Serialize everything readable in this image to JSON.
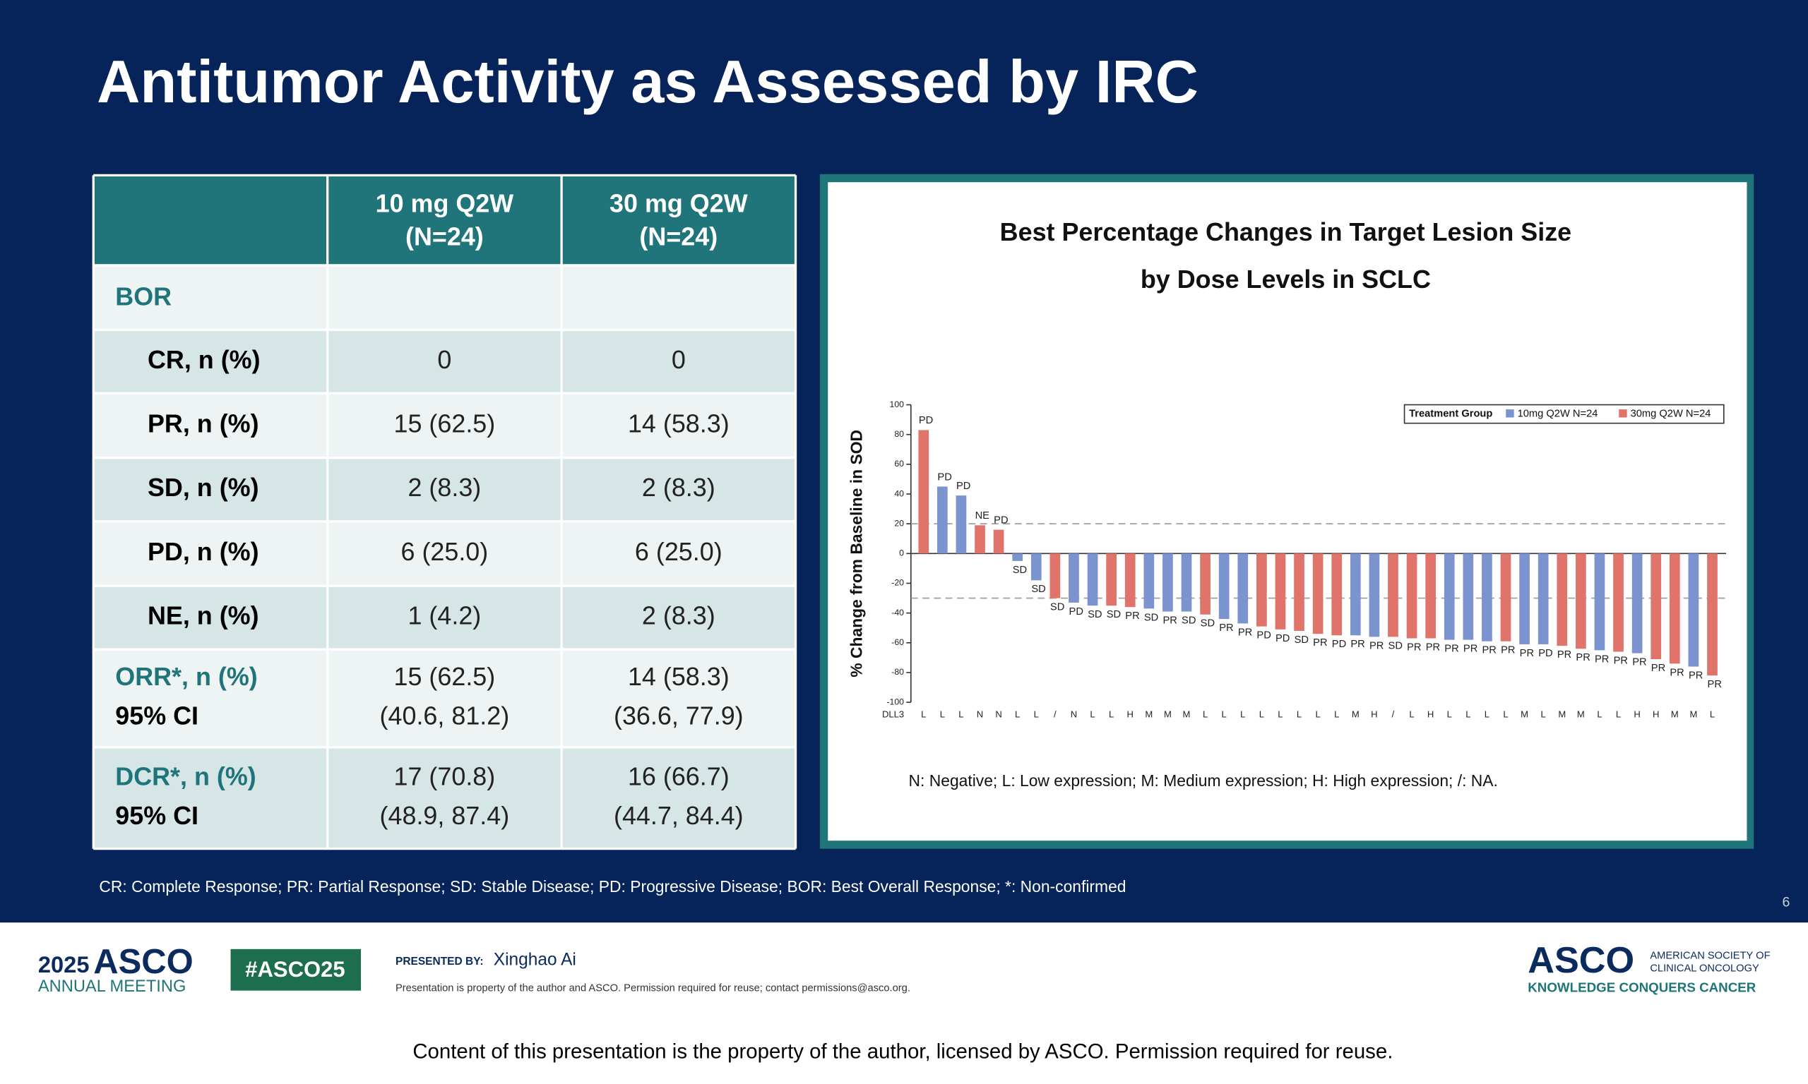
{
  "slide": {
    "title": "Antitumor Activity as Assessed by IRC",
    "footnote": "CR: Complete Response; PR: Partial Response; SD: Stable Disease; PD: Progressive Disease; BOR: Best Overall Response; *: Non-confirmed",
    "page_number": "6"
  },
  "table": {
    "columns": [
      [
        "10 mg Q2W",
        "(N=24)"
      ],
      [
        "30 mg Q2W",
        "(N=24)"
      ]
    ],
    "section": "BOR",
    "rows": [
      {
        "label": [
          "CR, n (%)"
        ],
        "cells": [
          [
            "0"
          ],
          [
            "0"
          ]
        ]
      },
      {
        "label": [
          "PR, n (%)"
        ],
        "cells": [
          [
            "15 (62.5)"
          ],
          [
            "14 (58.3)"
          ]
        ]
      },
      {
        "label": [
          "SD, n (%)"
        ],
        "cells": [
          [
            "2 (8.3)"
          ],
          [
            "2 (8.3)"
          ]
        ]
      },
      {
        "label": [
          "PD, n (%)"
        ],
        "cells": [
          [
            "6 (25.0)"
          ],
          [
            "6 (25.0)"
          ]
        ]
      },
      {
        "label": [
          "NE, n (%)"
        ],
        "cells": [
          [
            "1 (4.2)"
          ],
          [
            "2 (8.3)"
          ]
        ]
      },
      {
        "label": [
          "ORR*, n (%)",
          "95% CI"
        ],
        "cells": [
          [
            "15 (62.5)",
            "(40.6, 81.2)"
          ],
          [
            "14 (58.3)",
            "(36.6, 77.9)"
          ]
        ]
      },
      {
        "label": [
          "DCR*, n (%)",
          "95% CI"
        ],
        "cells": [
          [
            "17 (70.8)",
            "(48.9, 87.4)"
          ],
          [
            "16 (66.7)",
            "(44.7, 84.4)"
          ]
        ]
      }
    ]
  },
  "chart_data": {
    "type": "bar",
    "title": [
      "Best Percentage Changes in Target Lesion Size",
      "by Dose Levels in SCLC"
    ],
    "y_label": "% Change from Baseline in SOD",
    "category_axis_label": "DLL3",
    "categories": [
      "L",
      "L",
      "L",
      "N",
      "N",
      "L",
      "L",
      "/",
      "N",
      "L",
      "L",
      "H",
      "M",
      "M",
      "M",
      "L",
      "L",
      "L",
      "L",
      "L",
      "L",
      "L",
      "L",
      "M",
      "H",
      "/",
      "L",
      "H",
      "L",
      "L",
      "L",
      "L",
      "M",
      "L",
      "M",
      "M",
      "L",
      "L",
      "H",
      "H",
      "M",
      "M",
      "L"
    ],
    "bar_labels": [
      "PD",
      "PD",
      "PD",
      "NE",
      "PD",
      "SD",
      "SD",
      "SD",
      "PD",
      "SD",
      "SD",
      "PR",
      "SD",
      "PR",
      "SD",
      "SD",
      "PR",
      "PR",
      "PD",
      "PD",
      "SD",
      "PR",
      "PD",
      "PR",
      "PR",
      "SD",
      "PR",
      "PR",
      "PR",
      "PR",
      "PR",
      "PR",
      "PR",
      "PD",
      "PR",
      "PR",
      "PR",
      "PR",
      "PR",
      "PR",
      "PR",
      "PR",
      "PR"
    ],
    "series": [
      {
        "name": "10mg Q2W N=24",
        "color": "#7b93cf",
        "values": [
          null,
          45,
          39,
          null,
          null,
          -5,
          -18,
          null,
          -33,
          -35,
          null,
          null,
          -37,
          -39,
          -39,
          null,
          -44,
          -47,
          null,
          null,
          null,
          null,
          null,
          -55,
          -56,
          null,
          null,
          null,
          -58,
          -58,
          -59,
          null,
          -61,
          -61,
          null,
          null,
          -65,
          null,
          -67,
          null,
          null,
          -76,
          null
        ]
      },
      {
        "name": "30mg Q2W N=24",
        "color": "#e0736a",
        "values": [
          83,
          null,
          null,
          19,
          16,
          null,
          null,
          -30,
          null,
          null,
          -35,
          -36,
          null,
          null,
          null,
          -41,
          null,
          null,
          -49,
          -51,
          -52,
          -54,
          -55,
          null,
          null,
          -56,
          -57,
          -57,
          null,
          null,
          null,
          -59,
          null,
          null,
          -62,
          -64,
          null,
          -66,
          null,
          -71,
          -74,
          null,
          -82
        ]
      }
    ],
    "ylim": [
      -100,
      100
    ],
    "yticks": [
      -100,
      -80,
      -60,
      -40,
      -20,
      0,
      20,
      40,
      60,
      80,
      100
    ],
    "reference_lines": [
      20,
      -30
    ],
    "legend_title": "Treatment Group",
    "legend": "top-right",
    "note": "N: Negative; L: Low expression; M: Medium expression; H: High expression; /: NA."
  },
  "footer": {
    "meeting_year": "2025",
    "meeting_name": "ASCO",
    "meeting_sub": "ANNUAL MEETING",
    "hashtag": "#ASCO25",
    "presented_by_label": "PRESENTED BY:",
    "presenter": "Xinghao Ai",
    "property_note": "Presentation is property of the author and ASCO. Permission required for reuse; contact permissions@asco.org.",
    "org_logo": "ASCO",
    "org_name": [
      "AMERICAN SOCIETY OF",
      "CLINICAL ONCOLOGY"
    ],
    "tagline": "KNOWLEDGE CONQUERS CANCER",
    "caption": "Content of this presentation is the property of the author, licensed by ASCO. Permission required for reuse."
  }
}
